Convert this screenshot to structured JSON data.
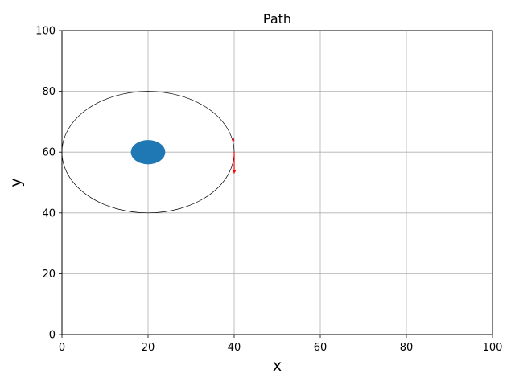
{
  "chart_data": {
    "type": "scatter",
    "title": "Path",
    "xlabel": "x",
    "ylabel": "y",
    "xlim": [
      0,
      100
    ],
    "ylim": [
      0,
      100
    ],
    "xticks": [
      0,
      20,
      40,
      60,
      80,
      100
    ],
    "yticks": [
      0,
      20,
      40,
      60,
      80,
      100
    ],
    "grid": true,
    "path": {
      "center": [
        20,
        60
      ],
      "radius_x": 20,
      "radius_y": 20,
      "color": "#000000"
    },
    "body": {
      "center": [
        20,
        60
      ],
      "radius": 4,
      "color": "#1f77b4"
    },
    "arrows": [
      {
        "from": [
          40,
          60
        ],
        "to": [
          40,
          53
        ],
        "color": "#ff0000"
      },
      {
        "from": [
          39.8,
          63.5
        ],
        "to": [
          39.9,
          64.5
        ],
        "color": "#ff0000"
      }
    ]
  }
}
